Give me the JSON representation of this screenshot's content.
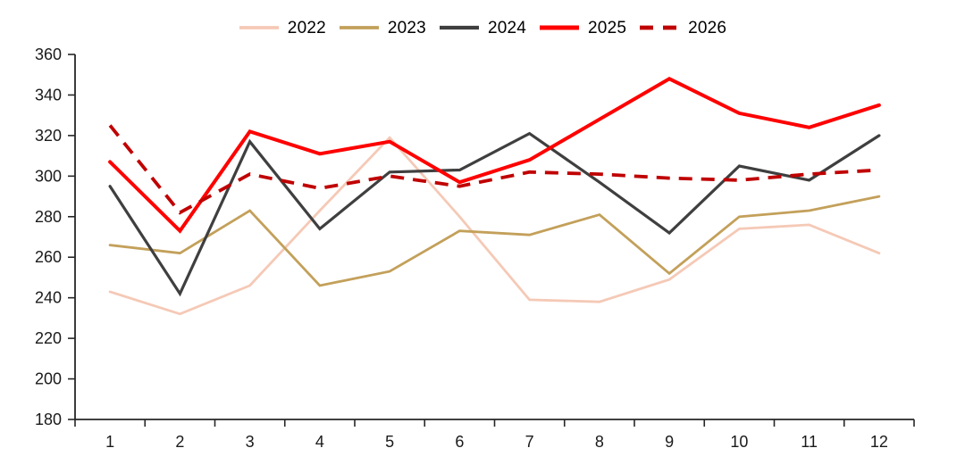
{
  "chart_data": {
    "type": "line",
    "title": "",
    "xlabel": "",
    "ylabel": "",
    "x_categories": [
      "1",
      "2",
      "3",
      "4",
      "5",
      "6",
      "7",
      "8",
      "9",
      "10",
      "11",
      "12"
    ],
    "ylim": [
      180,
      360
    ],
    "ytick_step": 20,
    "y_tick_labels": [
      "180",
      "200",
      "220",
      "240",
      "260",
      "280",
      "300",
      "320",
      "340",
      "360"
    ],
    "grid": false,
    "legend_position": "top-center",
    "axis_color": "#262626",
    "text_color": "#1a1a1a",
    "series": [
      {
        "name": "2022",
        "color": "#F5C9B6",
        "style": "solid",
        "width": 2.8,
        "values": [
          243,
          232,
          246,
          283,
          319,
          280,
          239,
          238,
          249,
          274,
          276,
          262
        ]
      },
      {
        "name": "2023",
        "color": "#C3A05A",
        "style": "solid",
        "width": 2.8,
        "values": [
          266,
          262,
          283,
          246,
          253,
          273,
          271,
          281,
          252,
          280,
          283,
          290
        ]
      },
      {
        "name": "2024",
        "color": "#3F3F3F",
        "style": "solid",
        "width": 3.2,
        "values": [
          295,
          242,
          317,
          274,
          302,
          303,
          321,
          297,
          272,
          305,
          298,
          320
        ]
      },
      {
        "name": "2025",
        "color": "#FF0000",
        "style": "solid",
        "width": 4,
        "values": [
          307,
          273,
          322,
          311,
          317,
          297,
          308,
          328,
          348,
          331,
          324,
          335
        ]
      },
      {
        "name": "2026",
        "color": "#C00000",
        "style": "dashed",
        "width": 3.8,
        "values": [
          325,
          282,
          301,
          294,
          300,
          295,
          302,
          301,
          299,
          298,
          301,
          303
        ]
      }
    ]
  }
}
